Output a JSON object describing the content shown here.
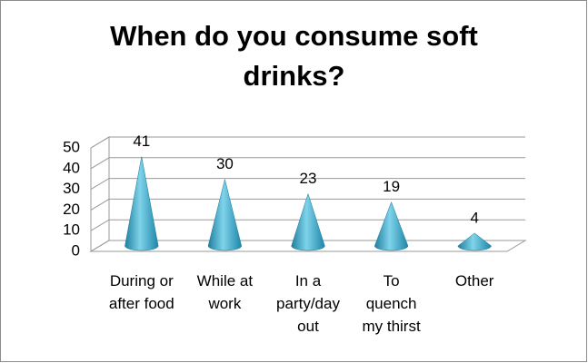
{
  "chart_data": {
    "type": "cone",
    "title": "When do you consume soft drinks?",
    "categories": [
      "During or\nafter food",
      "While at\nwork",
      "In a\nparty/day\nout",
      "To\nquench\nmy thirst",
      "Other"
    ],
    "values": [
      41,
      30,
      23,
      19,
      4
    ],
    "color": "#2fa3c6",
    "ylim": [
      0,
      50
    ],
    "yticks": [
      0,
      10,
      20,
      30,
      40,
      50
    ],
    "grid": true
  }
}
